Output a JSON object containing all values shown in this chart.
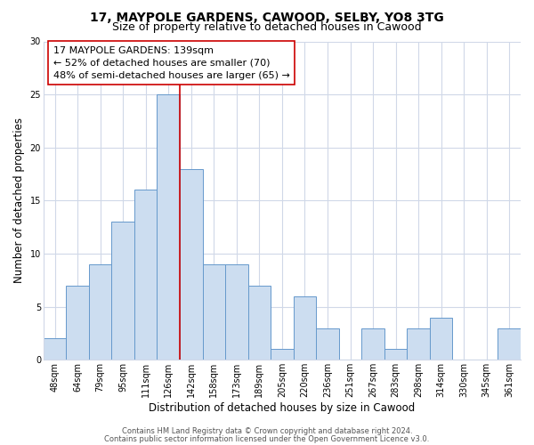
{
  "title": "17, MAYPOLE GARDENS, CAWOOD, SELBY, YO8 3TG",
  "subtitle": "Size of property relative to detached houses in Cawood",
  "xlabel": "Distribution of detached houses by size in Cawood",
  "ylabel": "Number of detached properties",
  "bins": [
    "48sqm",
    "64sqm",
    "79sqm",
    "95sqm",
    "111sqm",
    "126sqm",
    "142sqm",
    "158sqm",
    "173sqm",
    "189sqm",
    "205sqm",
    "220sqm",
    "236sqm",
    "251sqm",
    "267sqm",
    "283sqm",
    "298sqm",
    "314sqm",
    "330sqm",
    "345sqm",
    "361sqm"
  ],
  "counts": [
    2,
    7,
    9,
    13,
    16,
    25,
    18,
    9,
    9,
    7,
    1,
    6,
    3,
    0,
    3,
    1,
    3,
    4,
    0,
    0,
    3
  ],
  "bar_color": "#ccddf0",
  "bar_edge_color": "#6699cc",
  "subject_line_color": "#cc0000",
  "subject_line_bin_index": 6,
  "annotation_text_line1": "17 MAYPOLE GARDENS: 139sqm",
  "annotation_text_line2": "← 52% of detached houses are smaller (70)",
  "annotation_text_line3": "48% of semi-detached houses are larger (65) →",
  "annotation_box_color": "#ffffff",
  "annotation_box_edge": "#cc0000",
  "ylim": [
    0,
    30
  ],
  "yticks": [
    0,
    5,
    10,
    15,
    20,
    25,
    30
  ],
  "footer1": "Contains HM Land Registry data © Crown copyright and database right 2024.",
  "footer2": "Contains public sector information licensed under the Open Government Licence v3.0.",
  "bg_color": "#ffffff",
  "plot_bg_color": "#ffffff",
  "grid_color": "#d0d8e8",
  "title_fontsize": 10,
  "subtitle_fontsize": 9,
  "ylabel_fontsize": 8.5,
  "xlabel_fontsize": 8.5,
  "tick_fontsize": 7,
  "annotation_fontsize": 8,
  "footer_fontsize": 6
}
